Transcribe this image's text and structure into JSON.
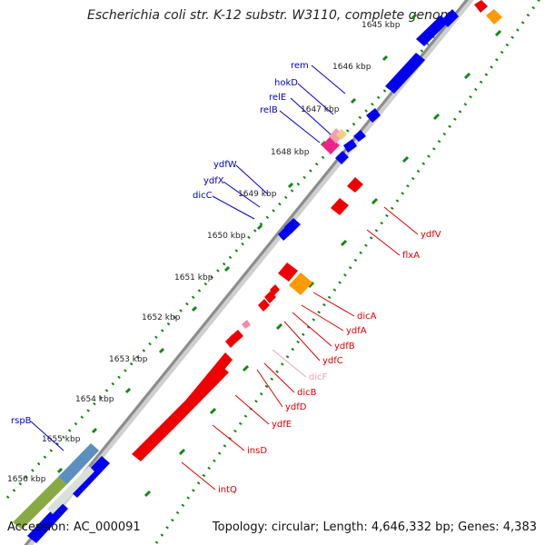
{
  "header": {
    "title": "Escherichia coli str. K-12 substr. W3110, complete genome"
  },
  "footer": {
    "accession": "Accession: AC_000091",
    "info": "Topology: circular; Length: 4,646,332 bp; Genes: 4,383"
  },
  "axis": {
    "unit": "kbp",
    "ticks": [
      {
        "kbp": 1645,
        "label": "1645 kbp"
      },
      {
        "kbp": 1646,
        "label": "1646 kbp"
      },
      {
        "kbp": 1647,
        "label": "1647 kbp"
      },
      {
        "kbp": 1648,
        "label": "1648 kbp"
      },
      {
        "kbp": 1649,
        "label": "1649 kbp"
      },
      {
        "kbp": 1650,
        "label": "1650 kbp"
      },
      {
        "kbp": 1651,
        "label": "1651 kbp"
      },
      {
        "kbp": 1652,
        "label": "1652 kbp"
      },
      {
        "kbp": 1653,
        "label": "1653 kbp"
      },
      {
        "kbp": 1654,
        "label": "1654 kbp"
      },
      {
        "kbp": 1655,
        "label": "1655 kbp"
      },
      {
        "kbp": 1656,
        "label": "1656 kbp"
      }
    ]
  },
  "colors": {
    "forward_gene": "#0000ee",
    "reverse_gene": "#ee0000",
    "forward_label": "#0000cc",
    "reverse_label": "#dd0000",
    "ncrna_gene": "#f08aa8",
    "ncrna_label": "#f0a0b8",
    "orange_feature": "#ff9900",
    "magenta_feature": "#ee2288",
    "tan_feature": "#f0d080",
    "backbone": "#999999",
    "dot_track": "#118811"
  },
  "genes_forward": [
    {
      "name": "rem",
      "label": true
    },
    {
      "name": "hokD",
      "label": true
    },
    {
      "name": "relE",
      "label": true
    },
    {
      "name": "relB",
      "label": true
    },
    {
      "name": "ydfW",
      "label": true
    },
    {
      "name": "ydfX",
      "label": true
    },
    {
      "name": "dicC",
      "label": true
    },
    {
      "name": "rspB",
      "label": true
    }
  ],
  "genes_reverse": [
    {
      "name": "ydfV"
    },
    {
      "name": "flxA"
    },
    {
      "name": "dicA"
    },
    {
      "name": "ydfA"
    },
    {
      "name": "ydfB"
    },
    {
      "name": "ydfC"
    },
    {
      "name": "dicF",
      "ncrna": true
    },
    {
      "name": "dicB"
    },
    {
      "name": "ydfD"
    },
    {
      "name": "ydfE"
    },
    {
      "name": "insD"
    },
    {
      "name": "intQ"
    }
  ]
}
